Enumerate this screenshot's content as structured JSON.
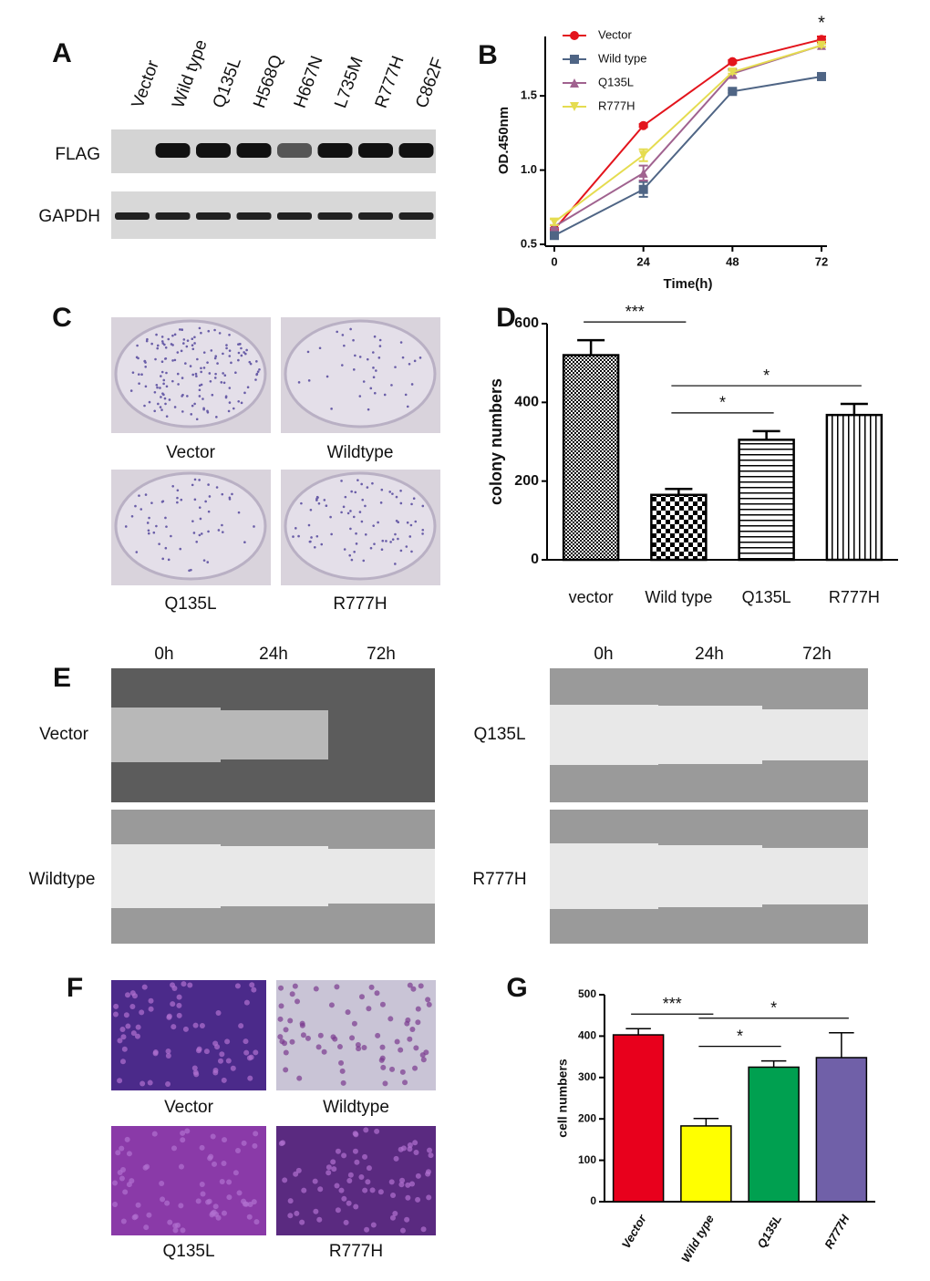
{
  "panel_letters": [
    "A",
    "B",
    "C",
    "D",
    "E",
    "F",
    "G"
  ],
  "blot": {
    "lanes": [
      "Vector",
      "Wild type",
      "Q135L",
      "H568Q",
      "H667N",
      "L735M",
      "R777H",
      "C862F"
    ],
    "rows": [
      "FLAG",
      "GAPDH"
    ]
  },
  "colony_images": {
    "labels": [
      "Vector",
      "Wildtype",
      "Q135L",
      "R777H"
    ]
  },
  "wound_healing": {
    "times": [
      "0h",
      "24h",
      "72h"
    ],
    "left_rows": [
      "Vector",
      "Wildtype"
    ],
    "right_rows": [
      "Q135L",
      "R777H"
    ]
  },
  "transwell_images": {
    "labels": [
      "Vector",
      "Wildtype",
      "Q135L",
      "R777H"
    ]
  },
  "chart_data": [
    {
      "type": "line",
      "x": [
        0,
        24,
        48,
        72
      ],
      "xlim": [
        0,
        72
      ],
      "xticks": [
        0,
        24,
        48,
        72
      ],
      "ylim": [
        0.5,
        1.9
      ],
      "yticks": [
        0.5,
        {
          "value": 1,
          "label": "1.0"
        },
        1.5
      ],
      "xlabel": "Time(h)",
      "ylabel": "OD.450nm",
      "series": [
        {
          "name": "Vector",
          "color": "#e3141c",
          "marker": "circle",
          "values": [
            0.6,
            1.3,
            1.73,
            1.88
          ],
          "errors": [
            0.01,
            0.01,
            0.01,
            0.02
          ]
        },
        {
          "name": "Wild type",
          "color": "#4f6585",
          "marker": "square",
          "values": [
            0.56,
            0.87,
            1.53,
            1.63
          ],
          "errors": [
            0.01,
            0.05,
            0.01,
            0.01
          ]
        },
        {
          "name": "Q135L",
          "color": "#a0628f",
          "marker": "triangle-up",
          "values": [
            0.62,
            0.98,
            1.65,
            1.84
          ],
          "errors": [
            0.01,
            0.05,
            0.03,
            0.01
          ]
        },
        {
          "name": "R777H",
          "color": "#e5dc50",
          "marker": "triangle-down",
          "values": [
            0.65,
            1.1,
            1.66,
            1.84
          ],
          "errors": [
            0.02,
            0.04,
            0.01,
            0.01
          ]
        }
      ],
      "annotations": [
        {
          "text": "*",
          "x": 72
        }
      ]
    },
    {
      "type": "bar",
      "categories": [
        "vector",
        "Wild type",
        "Q135L",
        "R777H"
      ],
      "values": [
        520,
        165,
        305,
        368
      ],
      "errors": [
        38,
        15,
        22,
        28
      ],
      "ylim": [
        0,
        600
      ],
      "yticks": [
        0,
        200,
        400,
        600
      ],
      "ylabel": "colony numbers",
      "annotations": [
        {
          "text": "***",
          "from": 0,
          "to": 1
        },
        {
          "text": "*",
          "from": 1,
          "to": 3
        },
        {
          "text": "*",
          "from": 1,
          "to": 2
        }
      ]
    },
    {
      "type": "bar",
      "categories": [
        "Vector",
        "Wild type",
        "Q135L",
        "R777H"
      ],
      "values": [
        403,
        183,
        325,
        348
      ],
      "errors": [
        15,
        18,
        15,
        60
      ],
      "colors": [
        "#e8001c",
        "#ffff00",
        "#00a050",
        "#7060a8"
      ],
      "ylim": [
        0,
        500
      ],
      "yticks": [
        0,
        100,
        200,
        300,
        400,
        500
      ],
      "ylabel": "cell numbers",
      "annotations": [
        {
          "text": "***",
          "from": 0,
          "to": 1
        },
        {
          "text": "*",
          "from": 1,
          "to": 3
        },
        {
          "text": "*",
          "from": 1,
          "to": 2
        }
      ]
    }
  ]
}
